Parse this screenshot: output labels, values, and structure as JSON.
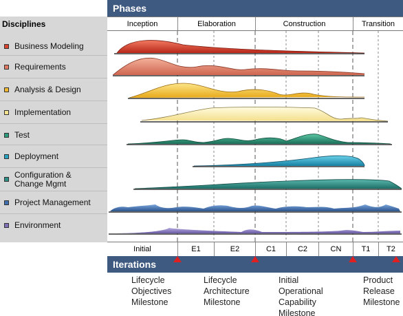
{
  "header": {
    "phases_title": "Phases",
    "iterations_title": "Iterations"
  },
  "disciplines_title": "Disciplines",
  "disciplines": [
    {
      "label": "Business Modeling",
      "color": "#d9452f"
    },
    {
      "label": "Requirements",
      "color": "#e07a62"
    },
    {
      "label": "Analysis & Design",
      "color": "#f2b830"
    },
    {
      "label": "Implementation",
      "color": "#f7e48e"
    },
    {
      "label": "Test",
      "color": "#2e9a7c"
    },
    {
      "label": "Deployment",
      "color": "#2aa2c2"
    },
    {
      "label": "Configuration &\nChange Mgmt",
      "color": "#2e8f86"
    },
    {
      "label": "Project Management",
      "color": "#3f6fae"
    },
    {
      "label": "Environment",
      "color": "#8070b8"
    }
  ],
  "phases": [
    "Inception",
    "Elaboration",
    "Construction",
    "Transition"
  ],
  "iterations": [
    "Initial",
    "E1",
    "E2",
    "C1",
    "C2",
    "CN",
    "T1",
    "T2"
  ],
  "milestones": [
    "Lifecycle\nObjectives\nMilestone",
    "Lifecycle\nArchitecture\nMilestone",
    "Initial\nOperational\nCapability\nMilestone",
    "Product\nRelease\nMilestone"
  ],
  "marker_color": "#e02020"
}
